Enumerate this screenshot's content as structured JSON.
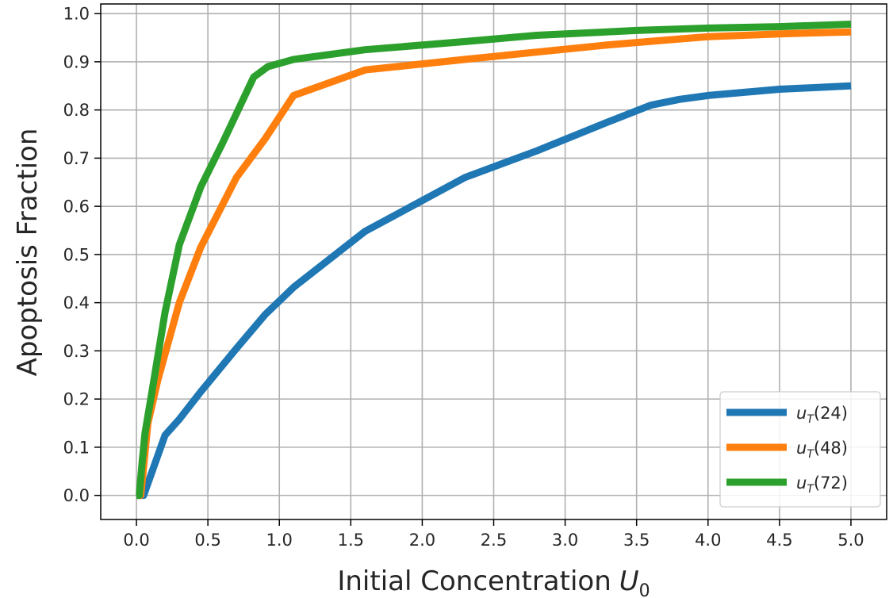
{
  "chart_data": {
    "type": "line",
    "title": "",
    "xlabel": "Initial Concentration",
    "xlabel_math": "U",
    "xlabel_sub": "0",
    "ylabel": "Apoptosis Fraction",
    "xlim": [
      -0.25,
      5.25
    ],
    "ylim": [
      -0.05,
      1.02
    ],
    "xticks": [
      0.0,
      0.5,
      1.0,
      1.5,
      2.0,
      2.5,
      3.0,
      3.5,
      4.0,
      4.5,
      5.0
    ],
    "xtick_labels": [
      "0.0",
      "0.5",
      "1.0",
      "1.5",
      "2.0",
      "2.5",
      "3.0",
      "3.5",
      "4.0",
      "4.5",
      "5.0"
    ],
    "yticks": [
      0.0,
      0.1,
      0.2,
      0.3,
      0.4,
      0.5,
      0.6,
      0.7,
      0.8,
      0.9,
      1.0
    ],
    "ytick_labels": [
      "0.0",
      "0.1",
      "0.2",
      "0.3",
      "0.4",
      "0.5",
      "0.6",
      "0.7",
      "0.8",
      "0.9",
      "1.0"
    ],
    "grid": true,
    "legend_position": "bottom-right",
    "series": [
      {
        "name_math": "u",
        "name_sub": "T",
        "name_rest": "(24)",
        "color": "#1f77b4",
        "x": [
          0.0,
          0.05,
          0.2,
          0.3,
          0.45,
          0.7,
          0.9,
          1.1,
          1.6,
          2.3,
          2.8,
          3.3,
          3.6,
          3.8,
          4.0,
          4.5,
          5.0
        ],
        "y": [
          0.0,
          0.0,
          0.125,
          0.158,
          0.215,
          0.305,
          0.375,
          0.432,
          0.548,
          0.66,
          0.715,
          0.775,
          0.81,
          0.822,
          0.83,
          0.843,
          0.85
        ]
      },
      {
        "name_math": "u",
        "name_sub": "T",
        "name_rest": "(48)",
        "color": "#ff7f0e",
        "x": [
          0.0,
          0.03,
          0.05,
          0.08,
          0.15,
          0.3,
          0.45,
          0.7,
          0.9,
          1.1,
          1.6,
          2.3,
          2.8,
          3.3,
          3.7,
          4.0,
          4.5,
          5.0
        ],
        "y": [
          0.0,
          0.0,
          0.06,
          0.15,
          0.24,
          0.4,
          0.515,
          0.66,
          0.74,
          0.83,
          0.883,
          0.905,
          0.92,
          0.935,
          0.945,
          0.952,
          0.958,
          0.962
        ]
      },
      {
        "name_math": "u",
        "name_sub": "T",
        "name_rest": "(72)",
        "color": "#2ca02c",
        "x": [
          0.0,
          0.02,
          0.04,
          0.06,
          0.1,
          0.2,
          0.3,
          0.45,
          0.6,
          0.82,
          0.92,
          1.1,
          1.6,
          2.3,
          2.8,
          3.5,
          4.0,
          4.5,
          5.0
        ],
        "y": [
          0.0,
          0.0,
          0.07,
          0.13,
          0.2,
          0.38,
          0.52,
          0.64,
          0.73,
          0.868,
          0.89,
          0.905,
          0.925,
          0.942,
          0.955,
          0.965,
          0.97,
          0.973,
          0.978
        ]
      }
    ]
  }
}
